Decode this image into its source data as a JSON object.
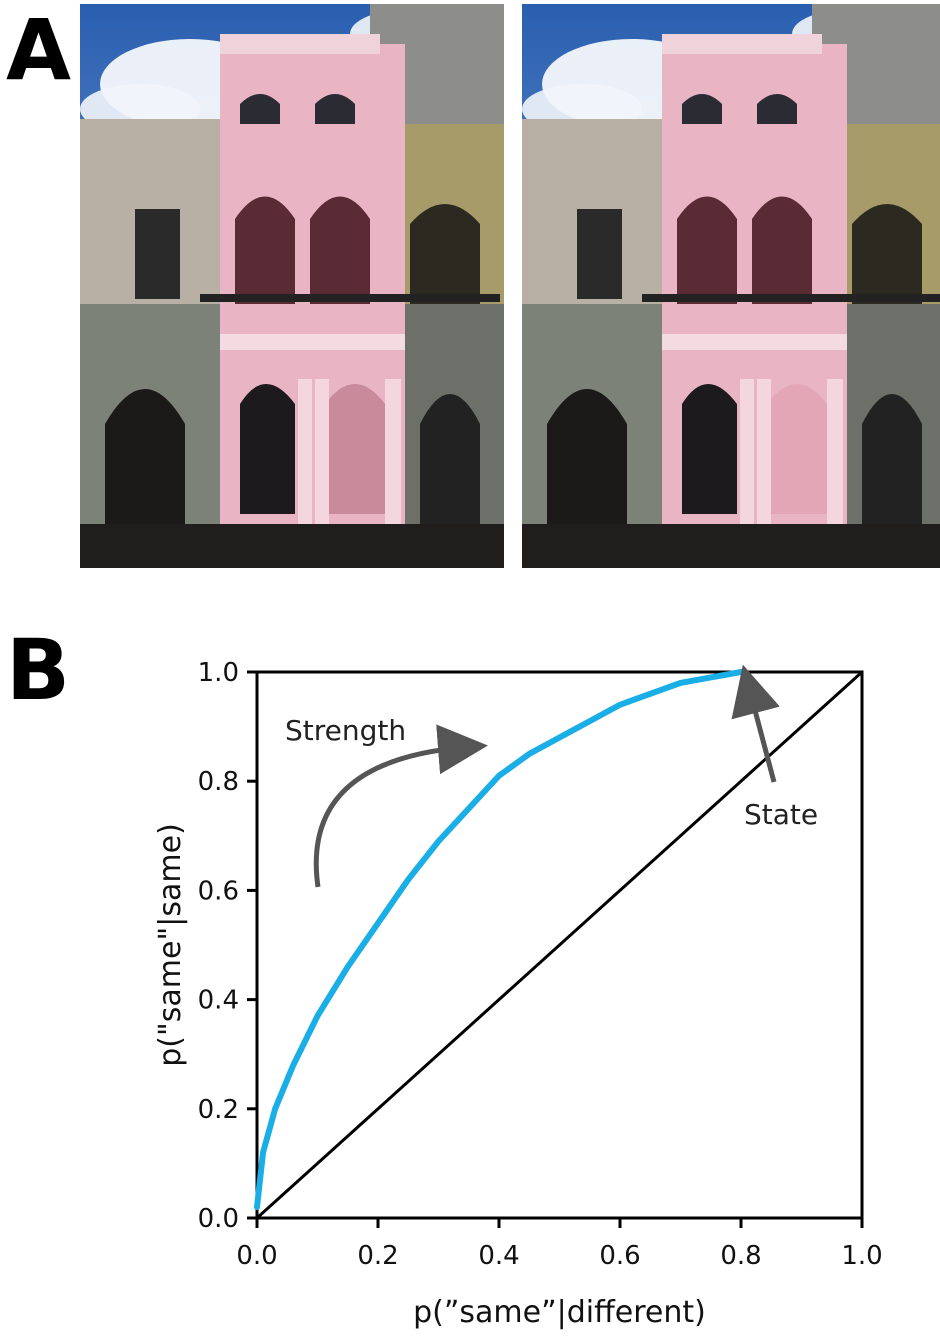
{
  "panel_a": {
    "letter": "A",
    "photos": [
      {
        "subject": "pink colonial building facade with arches, original"
      },
      {
        "subject": "pink colonial building facade with arches, altered"
      }
    ]
  },
  "panel_b": {
    "letter": "B"
  },
  "colors": {
    "curve": "#1aaee6",
    "diagonal": "#000000",
    "arrow": "#555555"
  },
  "chart_data": {
    "type": "line",
    "xlabel": "p(”same”|different)",
    "ylabel": "p(\"same\"|same)",
    "xlim": [
      0,
      1
    ],
    "ylim": [
      0,
      1
    ],
    "xticks": [
      "0.0",
      "0.2",
      "0.4",
      "0.6",
      "0.8",
      "1.0"
    ],
    "yticks": [
      "0.0",
      "0.2",
      "0.4",
      "0.6",
      "0.8",
      "1.0"
    ],
    "grid": false,
    "series": [
      {
        "x": [
          0,
          0.01,
          0.03,
          0.06,
          0.1,
          0.15,
          0.2,
          0.25,
          0.3,
          0.35,
          0.4,
          0.45,
          0.5,
          0.55,
          0.6,
          0.65,
          0.7,
          0.75,
          0.8
        ],
        "y": [
          0.02,
          0.12,
          0.2,
          0.28,
          0.37,
          0.46,
          0.54,
          0.62,
          0.69,
          0.75,
          0.81,
          0.85,
          0.88,
          0.91,
          0.94,
          0.96,
          0.98,
          0.99,
          1.0
        ]
      },
      {
        "x": [
          0,
          1
        ],
        "y": [
          0,
          1
        ]
      }
    ],
    "annotations": [
      {
        "text": "Strength"
      },
      {
        "text": "State"
      }
    ]
  }
}
